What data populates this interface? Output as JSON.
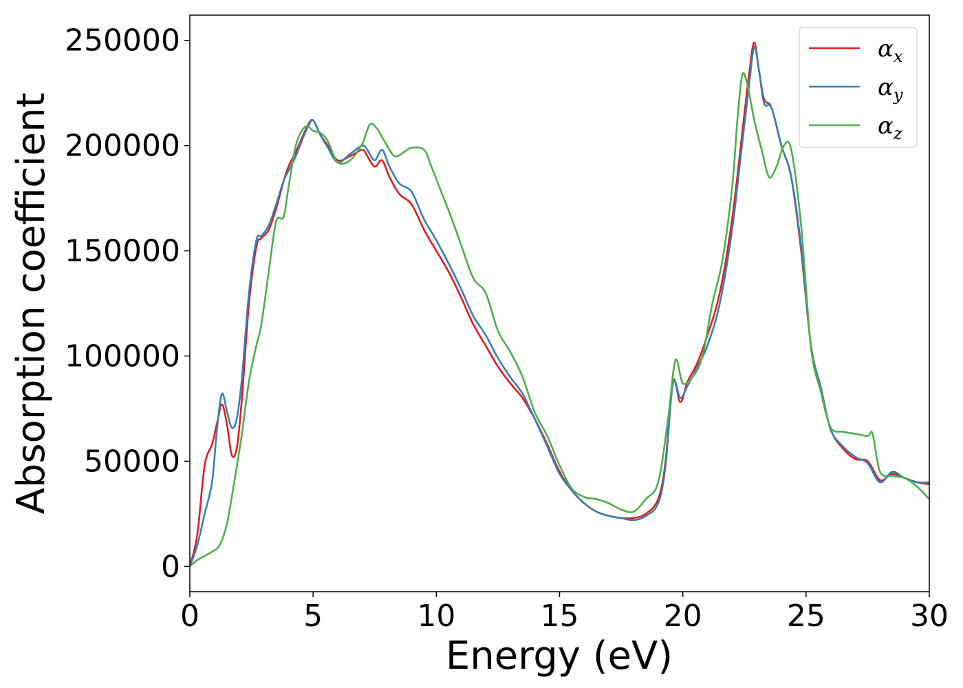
{
  "chart_data": {
    "type": "line",
    "xlabel": "Energy (eV)",
    "ylabel": "Absorption coefficient",
    "xlim": [
      0,
      30
    ],
    "ylim": [
      -12000,
      262000
    ],
    "xticks": [
      0,
      5,
      10,
      15,
      20,
      25,
      30
    ],
    "yticks": [
      0,
      50000,
      100000,
      150000,
      200000,
      250000
    ],
    "grid": false,
    "legend_position": "top-right",
    "series": [
      {
        "name": "α_x",
        "symbol": "α",
        "subscript": "x",
        "color": "#e41a1c",
        "x": [
          0,
          0.3,
          0.6,
          0.9,
          1.1,
          1.3,
          1.5,
          1.7,
          1.9,
          2.1,
          2.4,
          2.7,
          2.9,
          3.2,
          3.5,
          3.8,
          4.0,
          4.3,
          4.6,
          4.8,
          5.0,
          5.3,
          5.6,
          6.0,
          6.5,
          7.0,
          7.2,
          7.5,
          7.8,
          8.1,
          8.5,
          9.0,
          9.5,
          10.0,
          10.5,
          11.0,
          11.5,
          12.0,
          12.5,
          13.0,
          13.5,
          14.0,
          14.5,
          15.0,
          15.5,
          16.0,
          16.5,
          17.0,
          17.5,
          18.0,
          18.5,
          19.0,
          19.3,
          19.6,
          19.9,
          20.2,
          20.6,
          21.0,
          21.5,
          22.0,
          22.4,
          22.7,
          22.9,
          23.1,
          23.3,
          23.6,
          24.0,
          24.4,
          24.8,
          25.2,
          25.6,
          26.0,
          26.5,
          27.0,
          27.5,
          28.0,
          28.5,
          29.0,
          29.5,
          30.0
        ],
        "values": [
          0,
          15000,
          48000,
          58000,
          68000,
          77000,
          68000,
          53000,
          56000,
          78000,
          125000,
          152000,
          156000,
          160000,
          170000,
          183000,
          190000,
          197000,
          205000,
          210000,
          212000,
          205000,
          200000,
          193000,
          195000,
          198000,
          195000,
          190000,
          193000,
          185000,
          177000,
          172000,
          160000,
          150000,
          140000,
          128000,
          115000,
          105000,
          95000,
          87000,
          80000,
          70000,
          58000,
          45000,
          36000,
          30000,
          26000,
          24000,
          23000,
          23000,
          25000,
          32000,
          50000,
          88000,
          78000,
          88000,
          97000,
          110000,
          130000,
          165000,
          205000,
          235000,
          249000,
          235000,
          222000,
          218000,
          200000,
          185000,
          150000,
          105000,
          85000,
          65000,
          56000,
          51000,
          50000,
          41000,
          44000,
          42000,
          40000,
          39000
        ]
      },
      {
        "name": "α_y",
        "symbol": "α",
        "subscript": "y",
        "color": "#377eb8",
        "x": [
          0,
          0.3,
          0.6,
          0.9,
          1.1,
          1.3,
          1.5,
          1.7,
          1.9,
          2.1,
          2.4,
          2.7,
          2.9,
          3.2,
          3.5,
          3.8,
          4.0,
          4.3,
          4.6,
          4.8,
          5.0,
          5.3,
          5.6,
          6.0,
          6.5,
          7.0,
          7.2,
          7.5,
          7.8,
          8.1,
          8.5,
          9.0,
          9.5,
          10.0,
          10.5,
          11.0,
          11.5,
          12.0,
          12.5,
          13.0,
          13.5,
          14.0,
          14.5,
          15.0,
          15.5,
          16.0,
          16.5,
          17.0,
          17.5,
          18.0,
          18.5,
          19.0,
          19.3,
          19.6,
          19.9,
          20.2,
          20.6,
          21.0,
          21.5,
          22.0,
          22.4,
          22.7,
          22.9,
          23.1,
          23.3,
          23.6,
          24.0,
          24.4,
          24.8,
          25.2,
          25.6,
          26.0,
          26.5,
          27.0,
          27.5,
          28.0,
          28.5,
          29.0,
          29.5,
          30.0
        ],
        "values": [
          0,
          10000,
          25000,
          40000,
          65000,
          82000,
          74000,
          66000,
          70000,
          88000,
          130000,
          155000,
          157000,
          162000,
          172000,
          183000,
          188000,
          195000,
          204000,
          209000,
          212000,
          205000,
          199000,
          192000,
          196000,
          200000,
          198000,
          193000,
          198000,
          190000,
          182000,
          178000,
          165000,
          155000,
          144000,
          132000,
          119000,
          110000,
          99000,
          90000,
          82000,
          70000,
          57000,
          44000,
          36000,
          30000,
          26000,
          24000,
          23000,
          22000,
          24000,
          30000,
          48000,
          87000,
          80000,
          86000,
          95000,
          105000,
          125000,
          160000,
          200000,
          230000,
          247000,
          235000,
          220000,
          218000,
          200000,
          185000,
          152000,
          105000,
          85000,
          65000,
          57000,
          52000,
          49000,
          40000,
          45000,
          42000,
          40000,
          40000
        ]
      },
      {
        "name": "α_z",
        "symbol": "α",
        "subscript": "z",
        "color": "#4daf4a",
        "x": [
          0,
          0.3,
          0.6,
          0.9,
          1.2,
          1.5,
          1.8,
          2.1,
          2.4,
          2.7,
          2.9,
          3.2,
          3.5,
          3.8,
          4.0,
          4.3,
          4.6,
          4.8,
          5.0,
          5.3,
          5.6,
          6.0,
          6.5,
          7.0,
          7.3,
          7.6,
          7.9,
          8.3,
          8.7,
          9.0,
          9.5,
          9.8,
          10.2,
          10.6,
          11.0,
          11.5,
          12.0,
          12.5,
          13.0,
          13.5,
          14.0,
          14.5,
          15.0,
          15.5,
          16.0,
          16.5,
          17.0,
          17.5,
          18.0,
          18.5,
          19.0,
          19.4,
          19.7,
          20.0,
          20.4,
          20.8,
          21.2,
          21.6,
          22.0,
          22.2,
          22.4,
          22.6,
          22.9,
          23.2,
          23.5,
          23.8,
          24.1,
          24.4,
          24.8,
          25.2,
          25.6,
          26.0,
          26.5,
          27.0,
          27.5,
          27.7,
          28.0,
          28.5,
          29.0,
          29.5,
          30.0
        ],
        "values": [
          0,
          3000,
          5000,
          7000,
          10000,
          20000,
          40000,
          62000,
          88000,
          105000,
          115000,
          140000,
          164000,
          166000,
          180000,
          200000,
          208000,
          209000,
          207000,
          206000,
          202000,
          192000,
          193000,
          201000,
          210000,
          208000,
          202000,
          195000,
          197000,
          199000,
          198000,
          190000,
          178000,
          166000,
          153000,
          137000,
          130000,
          112000,
          102000,
          90000,
          73000,
          62000,
          48000,
          37000,
          33000,
          32000,
          30000,
          27000,
          26000,
          32000,
          40000,
          70000,
          98000,
          87000,
          90000,
          100000,
          125000,
          145000,
          180000,
          210000,
          233000,
          230000,
          212000,
          198000,
          185000,
          190000,
          200000,
          198000,
          162000,
          104000,
          83000,
          66000,
          64000,
          63000,
          62000,
          63000,
          45000,
          43000,
          42000,
          38000,
          32000
        ]
      }
    ]
  }
}
